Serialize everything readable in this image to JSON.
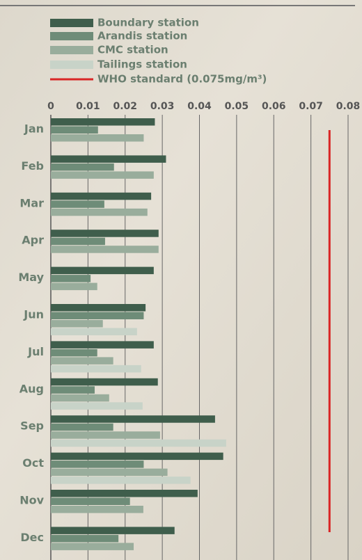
{
  "chart_data": {
    "type": "bar",
    "orientation": "horizontal",
    "categories": [
      "Jan",
      "Feb",
      "Mar",
      "Apr",
      "May",
      "Jun",
      "Jul",
      "Aug",
      "Sep",
      "Oct",
      "Nov",
      "Dec"
    ],
    "series": [
      {
        "name": "Boundary station",
        "color": "#3f5e4c",
        "values": [
          0.028,
          0.031,
          0.027,
          0.029,
          0.0277,
          0.0255,
          0.0277,
          0.0288,
          0.0442,
          0.0464,
          0.0395,
          0.0333
        ]
      },
      {
        "name": "Arandis station",
        "color": "#6e8c78",
        "values": [
          0.0127,
          0.017,
          0.0144,
          0.0146,
          0.0107,
          0.025,
          0.0125,
          0.0118,
          0.0168,
          0.025,
          0.0213,
          0.0182
        ]
      },
      {
        "name": "CMC station",
        "color": "#99ad9c",
        "values": [
          0.025,
          0.0277,
          0.026,
          0.029,
          0.0125,
          0.014,
          0.0168,
          0.0157,
          0.0294,
          0.0314,
          0.0249,
          0.0223
        ]
      },
      {
        "name": "Tailings station",
        "color": "#c8d3c8",
        "values": [
          null,
          null,
          null,
          null,
          null,
          0.0232,
          0.0243,
          0.0247,
          0.0472,
          0.0376,
          null,
          null
        ]
      }
    ],
    "reference": {
      "name": "WHO standard (0.075mg/m³)",
      "value": 0.075,
      "color": "#d92525"
    },
    "xlim": [
      0,
      0.08
    ],
    "xticks": [
      0,
      0.01,
      0.02,
      0.03,
      0.04,
      0.05,
      0.06,
      0.07,
      0.08
    ],
    "grid": true
  }
}
